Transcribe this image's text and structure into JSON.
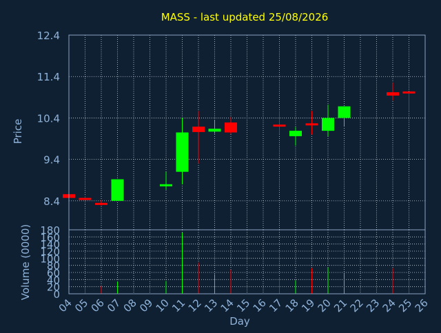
{
  "chart_data": [
    {
      "type": "candlestick",
      "title": "MASS - last updated 25/08/2026",
      "ylabel": "Price",
      "xlabel": "",
      "ylim": [
        7.7,
        12.4
      ],
      "yticks": [
        8.4,
        9.4,
        10.4,
        11.4,
        12.4
      ],
      "grid": true,
      "days": [
        "04",
        "05",
        "06",
        "07",
        "08",
        "09",
        "10",
        "11",
        "12",
        "13",
        "14",
        "15",
        "16",
        "17",
        "18",
        "19",
        "20",
        "21",
        "22",
        "23",
        "24",
        "25",
        "26"
      ],
      "candles": [
        {
          "day": "04",
          "open": 8.56,
          "high": 8.56,
          "low": 8.47,
          "close": 8.47
        },
        {
          "day": "05",
          "open": 8.47,
          "high": 8.52,
          "low": 8.32,
          "close": 8.44
        },
        {
          "day": "06",
          "open": 8.35,
          "high": 8.42,
          "low": 8.28,
          "close": 8.31
        },
        {
          "day": "07",
          "open": 8.4,
          "high": 8.92,
          "low": 8.4,
          "close": 8.92
        },
        {
          "day": "10",
          "open": 8.8,
          "high": 9.1,
          "low": 8.67,
          "close": 8.8
        },
        {
          "day": "11",
          "open": 9.1,
          "high": 10.4,
          "low": 8.8,
          "close": 10.05
        },
        {
          "day": "12",
          "open": 10.19,
          "high": 10.57,
          "low": 9.3,
          "close": 10.06
        },
        {
          "day": "13",
          "open": 10.07,
          "high": 10.35,
          "low": 10.02,
          "close": 10.14
        },
        {
          "day": "14",
          "open": 10.29,
          "high": 10.42,
          "low": 10.01,
          "close": 10.05
        },
        {
          "day": "17",
          "open": 10.24,
          "high": 10.57,
          "low": 10.0,
          "close": 10.21
        },
        {
          "day": "18",
          "open": 9.96,
          "high": 10.18,
          "low": 9.73,
          "close": 10.09
        },
        {
          "day": "19",
          "open": 10.27,
          "high": 10.57,
          "low": 10.0,
          "close": 10.25
        },
        {
          "day": "20",
          "open": 10.09,
          "high": 10.72,
          "low": 9.96,
          "close": 10.4
        },
        {
          "day": "21",
          "open": 10.4,
          "high": 10.68,
          "low": 10.2,
          "close": 10.68
        },
        {
          "day": "24",
          "open": 11.02,
          "high": 11.25,
          "low": 10.82,
          "close": 10.94
        },
        {
          "day": "25",
          "open": 11.04,
          "high": 11.04,
          "low": 10.55,
          "close": 10.99
        }
      ]
    },
    {
      "type": "bar",
      "title": "",
      "ylabel": "Volume (0000)",
      "xlabel": "Day",
      "ylim": [
        0,
        180
      ],
      "yticks": [
        0,
        20,
        40,
        60,
        80,
        100,
        120,
        140,
        160,
        180
      ],
      "grid": true,
      "categories": [
        "04",
        "05",
        "06",
        "07",
        "08",
        "09",
        "10",
        "11",
        "12",
        "13",
        "14",
        "15",
        "16",
        "17",
        "18",
        "19",
        "20",
        "21",
        "22",
        "23",
        "24",
        "25",
        "26"
      ],
      "values": [
        0,
        24,
        22,
        34,
        0,
        0,
        36,
        172,
        88,
        55,
        68,
        0,
        0,
        46,
        38,
        72,
        74,
        56,
        0,
        0,
        72,
        46,
        0
      ],
      "bar_colors": [
        "#ff0000",
        "#ff0000",
        "#ff0000",
        "#00ff00",
        "#00ff00",
        "#00ff00",
        "#00ff00",
        "#00ff00",
        "#ff0000",
        "#00ff00",
        "#ff0000",
        "#ff0000",
        "#ff0000",
        "#ff0000",
        "#00ff00",
        "#ff0000",
        "#00ff00",
        "#00ff00",
        "#00ff00",
        "#00ff00",
        "#ff0000",
        "#ff0000",
        "#ff0000"
      ]
    }
  ],
  "colors": {
    "background": "#102033",
    "plot_bg": "#102033",
    "frame": "#8aa4c0",
    "grid": "#c8d4e0",
    "tick_label": "#8fb3d9",
    "title": "#ffff00",
    "up": "#00ff00",
    "down": "#ff0000"
  }
}
